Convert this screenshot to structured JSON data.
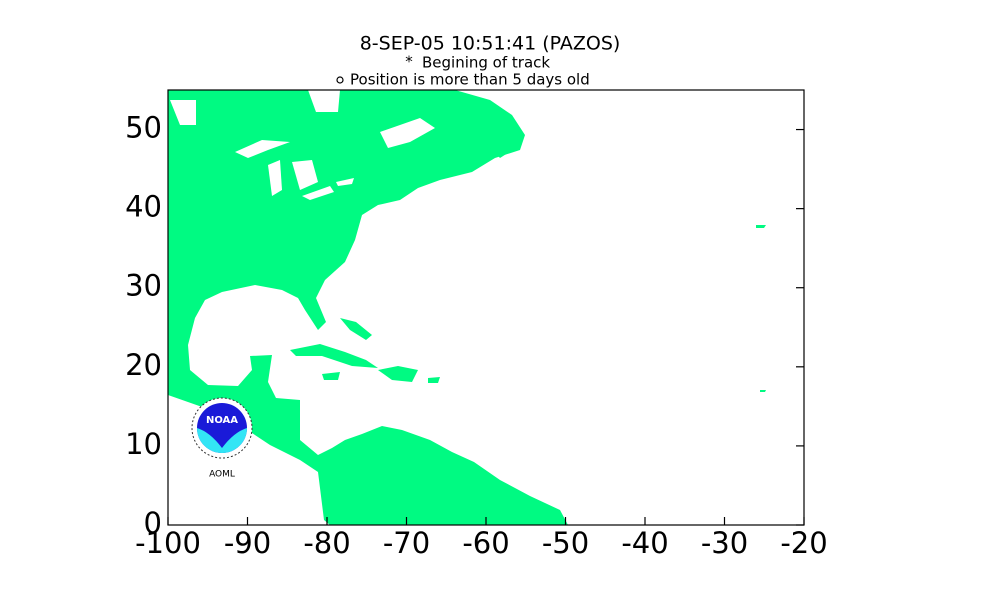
{
  "map": {
    "title": "8-SEP-05 10:51:41 (PAZOS)",
    "legend": [
      "Begining of track",
      "Position is more than 5 days old"
    ],
    "xlim": [
      -100,
      -20
    ],
    "ylim": [
      0,
      55
    ],
    "xticks": [
      -100,
      -90,
      -80,
      -70,
      -60,
      -50,
      -40,
      -30,
      -20
    ],
    "yticks": [
      0,
      10,
      20,
      30,
      40,
      50
    ],
    "logo": {
      "label": "NOAA",
      "caption": "AOML"
    }
  }
}
